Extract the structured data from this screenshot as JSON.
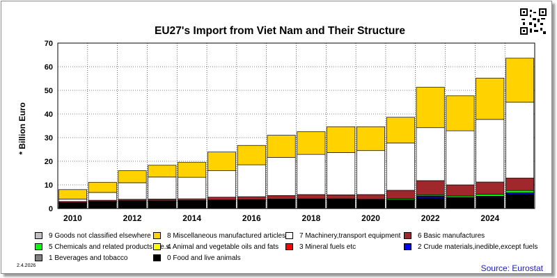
{
  "chart_data": {
    "type": "stacked-bar",
    "title": "EU27's Import from Viet Nam and Their Structure",
    "ylabel": "* Billion Euro",
    "ylim": [
      0,
      70
    ],
    "yticks": [
      0,
      10,
      20,
      30,
      40,
      50,
      60,
      70
    ],
    "grid": true,
    "legend_position": "bottom",
    "categories": [
      "2010",
      "2011",
      "2012",
      "2013",
      "2014",
      "2015",
      "2016",
      "2017",
      "2018",
      "2019",
      "2020",
      "2021",
      "2022",
      "2023",
      "2024",
      "2025"
    ],
    "x_tick_labels": [
      "2010",
      "",
      "2012",
      "",
      "2014",
      "",
      "2016",
      "",
      "2018",
      "",
      "2020",
      "",
      "2022",
      "",
      "2024",
      ""
    ],
    "series": [
      {
        "name": "0 Food and live animals",
        "color": "#000000",
        "values": [
          2.0,
          2.5,
          2.8,
          2.8,
          2.9,
          3.1,
          3.2,
          3.4,
          3.5,
          3.5,
          3.3,
          3.4,
          4.4,
          4.2,
          4.6,
          6.0
        ]
      },
      {
        "name": "1 Beverages and tobacco",
        "color": "#808080",
        "values": [
          0.05,
          0.05,
          0.05,
          0.05,
          0.05,
          0.05,
          0.05,
          0.05,
          0.05,
          0.05,
          0.05,
          0.05,
          0.05,
          0.05,
          0.05,
          0.05
        ]
      },
      {
        "name": "2 Crude materials,inedible,except fuels",
        "color": "#0000ff",
        "values": [
          0.2,
          0.2,
          0.2,
          0.2,
          0.2,
          0.2,
          0.2,
          0.2,
          0.2,
          0.2,
          0.2,
          0.2,
          0.6,
          0.3,
          0.4,
          0.5
        ]
      },
      {
        "name": "3 Mineral fuels etc",
        "color": "#ff0000",
        "values": [
          0.1,
          0.1,
          0.1,
          0.1,
          0.1,
          0.1,
          0.1,
          0.1,
          0.1,
          0.1,
          0.1,
          0.1,
          0.2,
          0.1,
          0.1,
          0.1
        ]
      },
      {
        "name": "4 Animal and vegetable oils and fats",
        "color": "#ffff00",
        "values": [
          0.05,
          0.05,
          0.05,
          0.05,
          0.05,
          0.05,
          0.05,
          0.05,
          0.05,
          0.05,
          0.05,
          0.05,
          0.05,
          0.05,
          0.05,
          0.05
        ]
      },
      {
        "name": "5 Chemicals and related products,n.e.s.",
        "color": "#00ff00",
        "values": [
          0.1,
          0.1,
          0.1,
          0.1,
          0.1,
          0.1,
          0.2,
          0.2,
          0.2,
          0.2,
          0.2,
          0.4,
          0.5,
          0.6,
          0.8,
          0.9
        ]
      },
      {
        "name": "6 Basic manufactures",
        "color": "#a0282d",
        "values": [
          0.5,
          0.5,
          0.6,
          0.7,
          0.7,
          1.2,
          1.2,
          1.5,
          1.8,
          1.7,
          2.0,
          3.5,
          6.0,
          4.7,
          5.2,
          5.3
        ]
      },
      {
        "name": "7 Machinery,transport equipment",
        "color": "#ffffff",
        "values": [
          1.0,
          3.3,
          7.0,
          9.3,
          9.1,
          11.2,
          13.5,
          16.1,
          17.0,
          17.9,
          18.6,
          20.0,
          22.4,
          22.9,
          26.5,
          32.1
        ]
      },
      {
        "name": "8 Miscellaneous manufactured articles",
        "color": "#ffd200",
        "values": [
          4.0,
          4.3,
          5.1,
          5.0,
          6.3,
          7.9,
          8.2,
          9.4,
          9.6,
          10.9,
          10.1,
          10.9,
          17.1,
          14.8,
          17.5,
          18.6
        ]
      },
      {
        "name": "9 Goods not classified elsewhere",
        "color": "#c0c0c0",
        "values": [
          0,
          0,
          0,
          0,
          0,
          0,
          0,
          0,
          0,
          0,
          0,
          0,
          0,
          0,
          0,
          0
        ]
      }
    ],
    "legend_order": [
      9,
      8,
      7,
      6,
      5,
      4,
      3,
      2,
      1,
      0
    ]
  },
  "footer": {
    "date": "2.4.2026",
    "source": "Source: Eurostat"
  },
  "qr_icon": "qr-code-icon"
}
